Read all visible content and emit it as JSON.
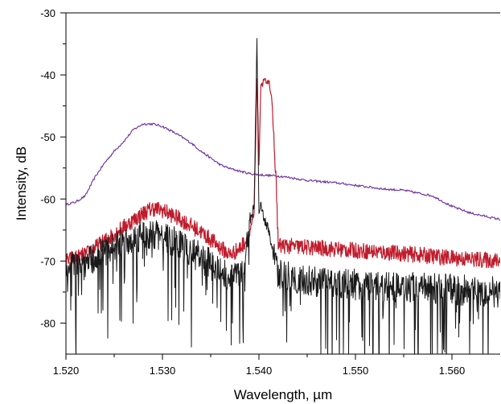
{
  "chart_data": {
    "type": "line",
    "title": "",
    "xlabel": "Wavelength, µm",
    "ylabel": "Intensity, dB",
    "xlim": [
      1.52,
      1.565
    ],
    "ylim": [
      -85,
      -30
    ],
    "x_ticks": [
      "1.520",
      "1.530",
      "1.540",
      "1.550",
      "1.560"
    ],
    "y_ticks": [
      "-30",
      "-40",
      "-50",
      "-60",
      "-70",
      "-80"
    ],
    "x_tick_values": [
      1.52,
      1.53,
      1.54,
      1.55,
      1.56
    ],
    "y_tick_values": [
      -30,
      -40,
      -50,
      -60,
      -70,
      -80
    ],
    "grid": false,
    "legend": "none",
    "series": [
      {
        "color": "#6a2aa0",
        "style": "thin",
        "x": [
          1.52,
          1.521,
          1.522,
          1.523,
          1.524,
          1.525,
          1.526,
          1.527,
          1.528,
          1.529,
          1.53,
          1.531,
          1.532,
          1.533,
          1.534,
          1.535,
          1.536,
          1.537,
          1.538,
          1.539,
          1.54,
          1.541,
          1.542,
          1.543,
          1.545,
          1.548,
          1.55,
          1.553,
          1.555,
          1.558,
          1.56,
          1.562,
          1.565
        ],
        "y": [
          -60.9,
          -60.5,
          -59.5,
          -56.5,
          -54.2,
          -52.3,
          -50.7,
          -48.8,
          -47.9,
          -47.9,
          -48.3,
          -49.1,
          -50.0,
          -51.0,
          -52.3,
          -53.4,
          -54.5,
          -55.1,
          -55.5,
          -55.9,
          -56.1,
          -56.2,
          -56.3,
          -56.5,
          -57.0,
          -57.4,
          -57.8,
          -58.4,
          -58.6,
          -59.5,
          -61.2,
          -62.3,
          -63.3
        ]
      },
      {
        "color": "#c01c2c",
        "style": "noisy",
        "x": [
          1.52,
          1.522,
          1.524,
          1.526,
          1.528,
          1.529,
          1.53,
          1.532,
          1.534,
          1.536,
          1.537,
          1.538,
          1.539,
          1.5395,
          1.5398,
          1.54,
          1.5402,
          1.5405,
          1.541,
          1.5413,
          1.5418,
          1.542,
          1.545,
          1.55,
          1.555,
          1.56,
          1.565
        ],
        "y": [
          -70.0,
          -69.0,
          -66.8,
          -64.5,
          -62.3,
          -61.5,
          -61.8,
          -63.4,
          -65.3,
          -67.8,
          -69.0,
          -68.0,
          -66.0,
          -62.0,
          -40.0,
          -55.0,
          -42.0,
          -41.0,
          -41.0,
          -43.0,
          -58.0,
          -67.5,
          -67.8,
          -68.3,
          -68.8,
          -69.5,
          -70.0
        ]
      },
      {
        "color": "#1a1a1a",
        "style": "noisy-deep",
        "x": [
          1.52,
          1.522,
          1.524,
          1.526,
          1.528,
          1.53,
          1.532,
          1.534,
          1.536,
          1.537,
          1.538,
          1.5385,
          1.539,
          1.5395,
          1.5398,
          1.54,
          1.5402,
          1.5405,
          1.541,
          1.5415,
          1.542,
          1.545,
          1.55,
          1.555,
          1.56,
          1.565
        ],
        "y": [
          -71.0,
          -70.5,
          -68.5,
          -67.0,
          -65.8,
          -66.0,
          -67.5,
          -69.5,
          -71.5,
          -72.5,
          -72.0,
          -70.0,
          -64.0,
          -61.0,
          -34.0,
          -62.5,
          -61.0,
          -63.0,
          -65.0,
          -69.0,
          -72.0,
          -73.2,
          -73.8,
          -74.2,
          -74.6,
          -75.0
        ]
      }
    ]
  }
}
